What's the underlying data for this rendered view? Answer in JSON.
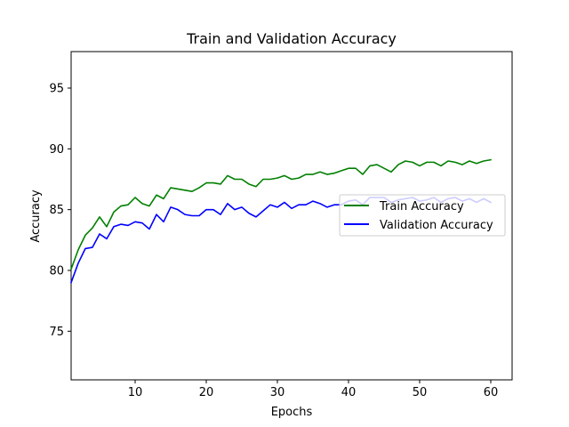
{
  "chart_data": {
    "type": "line",
    "title": "Train and Validation Accuracy",
    "xlabel": "Epochs",
    "ylabel": "Accuracy",
    "xlim": [
      1,
      63
    ],
    "ylim": [
      71,
      98
    ],
    "xticks": [
      10,
      20,
      30,
      40,
      50,
      60
    ],
    "yticks": [
      75,
      80,
      85,
      90,
      95
    ],
    "legend_position": "center-right",
    "grid": false,
    "x": [
      1,
      2,
      3,
      4,
      5,
      6,
      7,
      8,
      9,
      10,
      11,
      12,
      13,
      14,
      15,
      16,
      17,
      18,
      19,
      20,
      21,
      22,
      23,
      24,
      25,
      26,
      27,
      28,
      29,
      30,
      31,
      32,
      33,
      34,
      35,
      36,
      37,
      38,
      39,
      40,
      41,
      42,
      43,
      44,
      45,
      46,
      47,
      48,
      49,
      50,
      51,
      52,
      53,
      54,
      55,
      56,
      57,
      58,
      59,
      60
    ],
    "series": [
      {
        "name": "Train Accuracy",
        "color": "#008000",
        "values": [
          80.1,
          81.7,
          82.9,
          83.5,
          84.4,
          83.6,
          84.8,
          85.3,
          85.4,
          86.0,
          85.5,
          85.3,
          86.2,
          85.9,
          86.8,
          86.7,
          86.6,
          86.5,
          86.8,
          87.2,
          87.2,
          87.1,
          87.8,
          87.5,
          87.5,
          87.1,
          86.9,
          87.5,
          87.5,
          87.6,
          87.8,
          87.5,
          87.6,
          87.9,
          87.9,
          88.1,
          87.9,
          88.0,
          88.2,
          88.4,
          88.4,
          87.9,
          88.6,
          88.7,
          88.4,
          88.1,
          88.7,
          89.0,
          88.9,
          88.6,
          88.9,
          88.9,
          88.6,
          89.0,
          88.9,
          88.7,
          89.0,
          88.8,
          89.0,
          89.1
        ]
      },
      {
        "name": "Validation Accuracy",
        "color": "#0000ff",
        "values": [
          79.0,
          80.6,
          81.8,
          81.9,
          83.0,
          82.6,
          83.6,
          83.8,
          83.7,
          84.0,
          83.9,
          83.4,
          84.6,
          84.0,
          85.2,
          85.0,
          84.6,
          84.5,
          84.5,
          85.0,
          85.0,
          84.6,
          85.5,
          85.0,
          85.2,
          84.7,
          84.4,
          84.9,
          85.4,
          85.2,
          85.6,
          85.1,
          85.4,
          85.4,
          85.7,
          85.5,
          85.2,
          85.4,
          85.4,
          85.7,
          85.8,
          85.4,
          86.0,
          86.0,
          86.0,
          85.6,
          85.8,
          85.9,
          86.0,
          85.7,
          85.8,
          86.0,
          85.6,
          85.9,
          86.0,
          85.7,
          85.9,
          85.6,
          85.9,
          85.6
        ]
      }
    ]
  }
}
